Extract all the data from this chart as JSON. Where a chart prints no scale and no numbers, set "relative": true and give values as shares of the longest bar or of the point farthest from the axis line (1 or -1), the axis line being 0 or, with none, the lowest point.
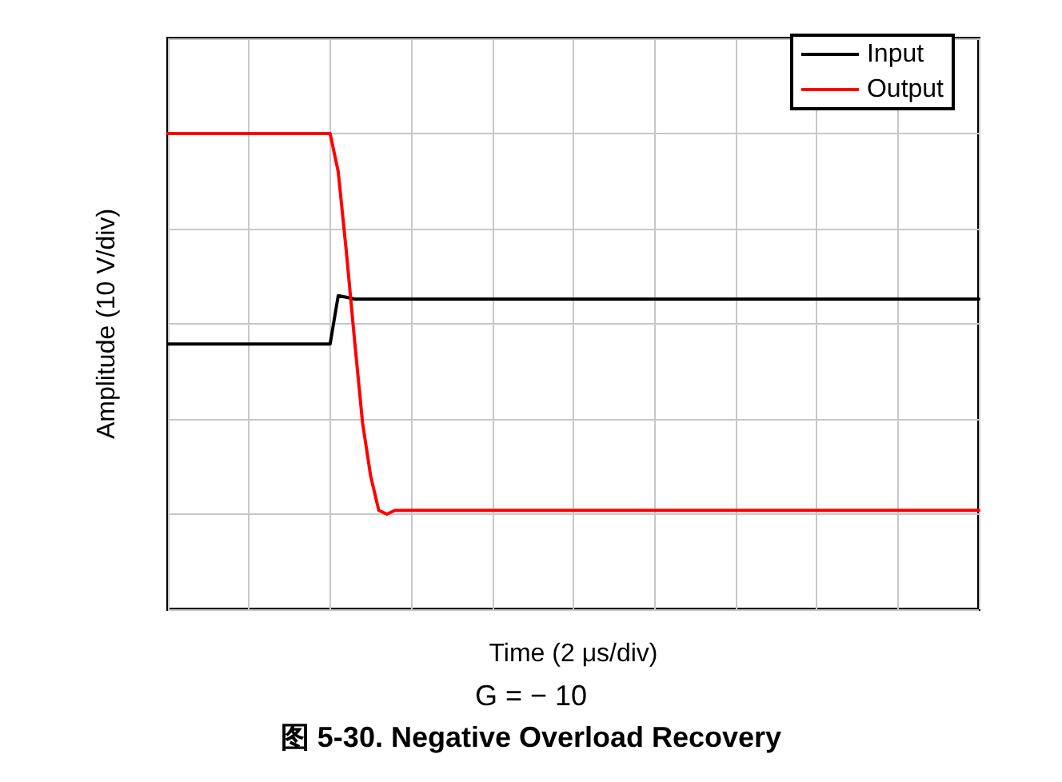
{
  "chart_data": {
    "type": "line",
    "title": "图 5-30. Negative Overload Recovery",
    "xlabel": "Time (2 μs/div)",
    "ylabel": "Amplitude (10 V/div)",
    "annotations": [
      "G = − 10"
    ],
    "relative": true,
    "grid": true,
    "legend": "top right",
    "line_style": "solid",
    "categories": [
      null,
      null,
      null,
      null,
      null,
      null,
      null,
      null,
      null,
      null,
      null,
      null,
      null,
      null,
      null,
      null,
      null,
      null,
      null,
      null,
      null,
      null,
      null,
      null,
      null,
      null,
      null,
      null,
      null,
      null,
      null,
      null,
      null,
      null,
      null,
      null,
      null,
      null,
      null,
      null,
      null,
      null,
      null,
      null,
      null,
      null,
      null,
      null,
      null,
      null,
      null,
      null,
      null,
      null,
      null,
      null,
      null,
      null,
      null,
      null,
      null,
      null,
      null,
      null,
      null,
      null,
      null,
      null,
      null,
      null,
      null,
      null,
      null,
      null,
      null,
      null,
      null,
      null,
      null,
      null,
      null,
      null,
      null,
      null,
      null,
      null,
      null,
      null,
      null,
      null,
      null,
      null,
      null,
      null,
      null,
      null,
      null,
      null,
      null,
      null,
      null
    ],
    "series": [
      {
        "name": "Input",
        "color": "#000000",
        "values": [
          0.447,
          0.447,
          0.447,
          0.447,
          0.447,
          0.447,
          0.447,
          0.447,
          0.447,
          0.447,
          0.447,
          0.447,
          0.447,
          0.447,
          0.447,
          0.447,
          0.447,
          0.447,
          0.447,
          0.447,
          0.447,
          0.574,
          0.57,
          0.565,
          0.565,
          0.565,
          0.565,
          0.565,
          0.565,
          0.565,
          0.565,
          0.565,
          0.565,
          0.565,
          0.565,
          0.565,
          0.565,
          0.565,
          0.565,
          0.565,
          0.565,
          0.565,
          0.565,
          0.565,
          0.565,
          0.565,
          0.565,
          0.565,
          0.565,
          0.565,
          0.565,
          0.565,
          0.565,
          0.565,
          0.565,
          0.565,
          0.565,
          0.565,
          0.565,
          0.565,
          0.565,
          0.565,
          0.565,
          0.565,
          0.565,
          0.565,
          0.565,
          0.565,
          0.565,
          0.565,
          0.565,
          0.565,
          0.565,
          0.565,
          0.565,
          0.565,
          0.565,
          0.565,
          0.565,
          0.565,
          0.565,
          0.565,
          0.565,
          0.565,
          0.565,
          0.565,
          0.565,
          0.565,
          0.565,
          0.565,
          0.565,
          0.565,
          0.565,
          0.565,
          0.565,
          0.565,
          0.565,
          0.565,
          0.565,
          0.565,
          0.565
        ]
      },
      {
        "name": "Output",
        "color": "#ff0000",
        "values": [
          1,
          1,
          1,
          1,
          1,
          1,
          1,
          1,
          1,
          1,
          1,
          1,
          1,
          1,
          1,
          1,
          1,
          1,
          1,
          1,
          1,
          0.9,
          0.69,
          0.46,
          0.24,
          0.1,
          0.01,
          0,
          0.01,
          0.01,
          0.01,
          0.01,
          0.01,
          0.01,
          0.01,
          0.01,
          0.01,
          0.01,
          0.01,
          0.01,
          0.01,
          0.01,
          0.01,
          0.01,
          0.01,
          0.01,
          0.01,
          0.01,
          0.01,
          0.01,
          0.01,
          0.01,
          0.01,
          0.01,
          0.01,
          0.01,
          0.01,
          0.01,
          0.01,
          0.01,
          0.01,
          0.01,
          0.01,
          0.01,
          0.01,
          0.01,
          0.01,
          0.01,
          0.01,
          0.01,
          0.01,
          0.01,
          0.01,
          0.01,
          0.01,
          0.01,
          0.01,
          0.01,
          0.01,
          0.01,
          0.01,
          0.01,
          0.01,
          0.01,
          0.01,
          0.01,
          0.01,
          0.01,
          0.01,
          0.01,
          0.01,
          0.01,
          0.01,
          0.01,
          0.01,
          0.01,
          0.01,
          0.01,
          0.01,
          0.01,
          0.01
        ]
      }
    ]
  }
}
